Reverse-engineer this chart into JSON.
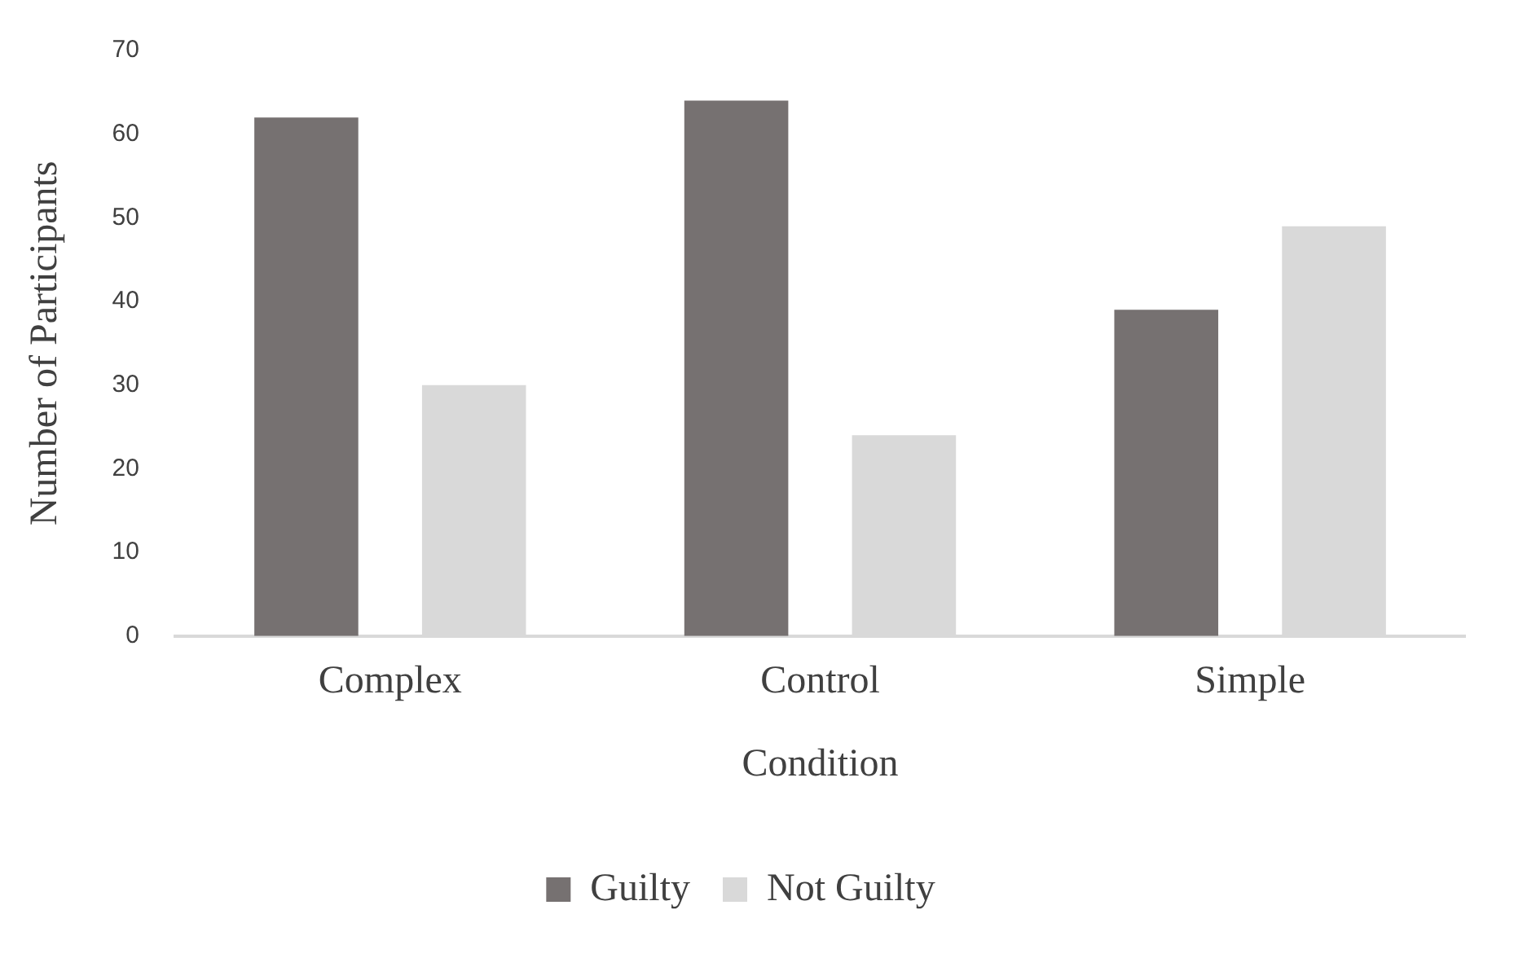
{
  "chart_data": {
    "type": "bar",
    "xlabel": "Condition",
    "ylabel": "Number of Participants",
    "categories": [
      "Complex",
      "Control",
      "Simple"
    ],
    "series": [
      {
        "name": "Guilty",
        "color": "#767171",
        "values": [
          62,
          64,
          39
        ]
      },
      {
        "name": "Not Guilty",
        "color": "#d9d9d9",
        "values": [
          30,
          24,
          49
        ]
      }
    ],
    "ylim": [
      0,
      70
    ],
    "yticks": [
      0,
      10,
      20,
      30,
      40,
      50,
      60,
      70
    ],
    "grid": false,
    "legend": "bottom"
  }
}
